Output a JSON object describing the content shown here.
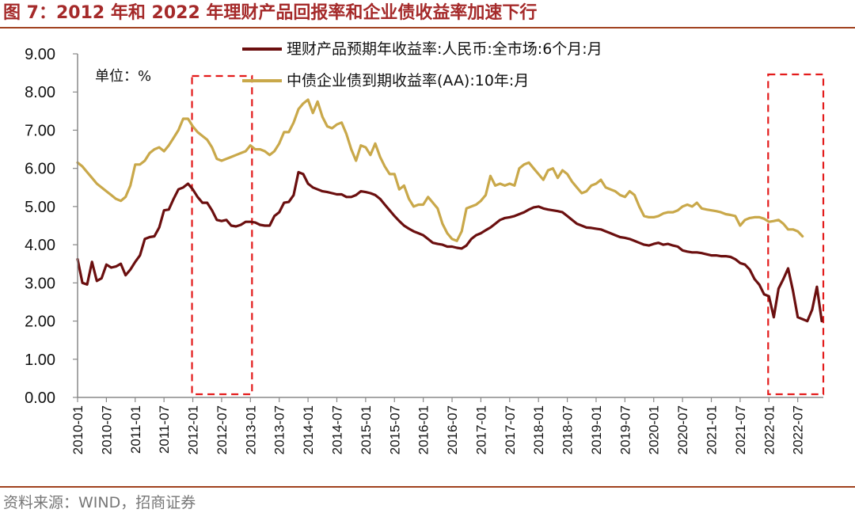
{
  "figure": {
    "title": "图 7：2012 年和 2022 年理财产品回报率和企业债收益率加速下行",
    "source": "资料来源：WIND，招商证券"
  },
  "chart_data": {
    "type": "line",
    "unit_label": "单位：%",
    "ylim": [
      0,
      9
    ],
    "yticks": [
      "0.00",
      "1.00",
      "2.00",
      "3.00",
      "4.00",
      "5.00",
      "6.00",
      "7.00",
      "8.00",
      "9.00"
    ],
    "x_start": "2010-01",
    "xticks": [
      "2010-01",
      "2010-07",
      "2011-01",
      "2011-07",
      "2012-01",
      "2012-07",
      "2013-01",
      "2013-07",
      "2014-01",
      "2014-07",
      "2015-01",
      "2015-07",
      "2016-01",
      "2016-07",
      "2017-01",
      "2017-07",
      "2018-01",
      "2018-07",
      "2019-01",
      "2019-07",
      "2020-01",
      "2020-07",
      "2021-01",
      "2021-07",
      "2022-01",
      "2022-07"
    ],
    "highlight_ranges": [
      {
        "from": "2012-01",
        "to": "2013-01",
        "style": "red-dashed-box"
      },
      {
        "from": "2022-01",
        "to": "2022-12",
        "style": "red-dashed-box"
      }
    ],
    "series": [
      {
        "name": "理财产品预期年收益率:人民币:全市场:6个月:月",
        "color": "#6b0f0f",
        "values": [
          3.62,
          3.0,
          2.96,
          3.55,
          3.05,
          3.12,
          3.48,
          3.4,
          3.43,
          3.5,
          3.2,
          3.35,
          3.55,
          3.72,
          4.15,
          4.2,
          4.22,
          4.45,
          4.9,
          4.92,
          5.2,
          5.45,
          5.5,
          5.6,
          5.45,
          5.25,
          5.1,
          5.1,
          4.9,
          4.65,
          4.62,
          4.65,
          4.5,
          4.48,
          4.52,
          4.6,
          4.6,
          4.58,
          4.52,
          4.5,
          4.5,
          4.75,
          4.85,
          5.1,
          5.12,
          5.3,
          5.9,
          5.85,
          5.6,
          5.5,
          5.45,
          5.4,
          5.38,
          5.35,
          5.32,
          5.32,
          5.25,
          5.25,
          5.3,
          5.4,
          5.38,
          5.35,
          5.3,
          5.2,
          5.05,
          4.9,
          4.75,
          4.62,
          4.5,
          4.42,
          4.35,
          4.3,
          4.25,
          4.15,
          4.05,
          4.02,
          4.0,
          3.95,
          3.95,
          3.92,
          3.9,
          3.98,
          4.15,
          4.25,
          4.3,
          4.38,
          4.45,
          4.55,
          4.65,
          4.7,
          4.72,
          4.75,
          4.8,
          4.85,
          4.92,
          4.98,
          5.0,
          4.95,
          4.92,
          4.9,
          4.88,
          4.85,
          4.75,
          4.65,
          4.55,
          4.5,
          4.45,
          4.44,
          4.42,
          4.4,
          4.35,
          4.3,
          4.25,
          4.2,
          4.18,
          4.15,
          4.1,
          4.05,
          4.0,
          3.98,
          4.02,
          4.05,
          4.0,
          4.02,
          3.98,
          3.95,
          3.85,
          3.82,
          3.8,
          3.8,
          3.78,
          3.75,
          3.72,
          3.72,
          3.7,
          3.7,
          3.68,
          3.62,
          3.52,
          3.48,
          3.35,
          3.1,
          2.95,
          2.7,
          2.65,
          2.1,
          2.85,
          3.1,
          3.38,
          2.8,
          2.1,
          2.05,
          2.0,
          2.3,
          2.9,
          2.0
        ]
      },
      {
        "name": "中债企业债到期收益率(AA):10年:月",
        "color": "#c9a84a",
        "values": [
          6.15,
          6.05,
          5.9,
          5.75,
          5.6,
          5.5,
          5.4,
          5.3,
          5.2,
          5.15,
          5.25,
          5.55,
          6.1,
          6.1,
          6.2,
          6.4,
          6.5,
          6.55,
          6.45,
          6.6,
          6.8,
          7.0,
          7.3,
          7.3,
          7.1,
          6.95,
          6.85,
          6.75,
          6.55,
          6.25,
          6.2,
          6.25,
          6.3,
          6.35,
          6.4,
          6.45,
          6.6,
          6.5,
          6.5,
          6.45,
          6.35,
          6.45,
          6.65,
          6.95,
          6.95,
          7.2,
          7.55,
          7.7,
          7.8,
          7.45,
          7.75,
          7.35,
          7.1,
          7.05,
          7.15,
          7.2,
          6.9,
          6.5,
          6.2,
          6.6,
          6.55,
          6.35,
          6.65,
          6.3,
          6.05,
          5.85,
          5.85,
          5.45,
          5.55,
          5.2,
          5.0,
          5.05,
          5.05,
          5.25,
          5.1,
          4.95,
          4.55,
          4.3,
          4.15,
          4.1,
          4.35,
          4.95,
          5.0,
          5.05,
          5.15,
          5.3,
          5.8,
          5.55,
          5.6,
          5.55,
          5.6,
          5.55,
          6.0,
          6.1,
          6.15,
          6.0,
          5.85,
          5.7,
          5.95,
          6.0,
          5.75,
          5.95,
          5.85,
          5.65,
          5.5,
          5.35,
          5.4,
          5.55,
          5.6,
          5.7,
          5.5,
          5.45,
          5.4,
          5.3,
          5.25,
          5.4,
          5.3,
          5.0,
          4.75,
          4.72,
          4.72,
          4.75,
          4.82,
          4.85,
          4.85,
          4.9,
          5.0,
          5.05,
          5.0,
          5.1,
          4.95,
          4.92,
          4.9,
          4.88,
          4.85,
          4.8,
          4.78,
          4.75,
          4.5,
          4.65,
          4.7,
          4.72,
          4.72,
          4.68,
          4.6,
          4.62,
          4.65,
          4.55,
          4.4,
          4.4,
          4.35,
          4.22
        ]
      }
    ]
  }
}
